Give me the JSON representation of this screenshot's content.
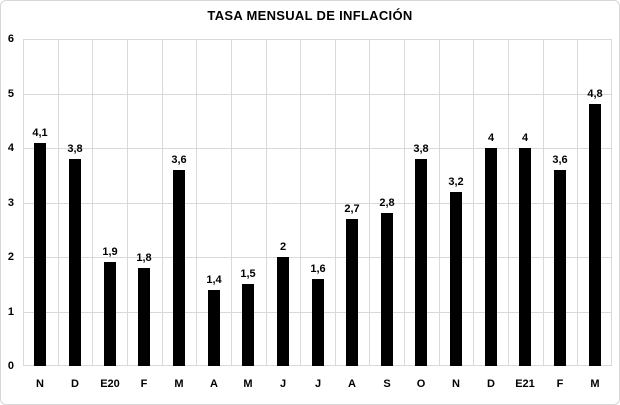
{
  "chart_data": {
    "type": "bar",
    "title": "TASA MENSUAL DE INFLACIÓN",
    "categories": [
      "N",
      "D",
      "E20",
      "F",
      "M",
      "A",
      "M",
      "J",
      "J",
      "A",
      "S",
      "O",
      "N",
      "D",
      "E21",
      "F",
      "M"
    ],
    "values": [
      4.1,
      3.8,
      1.9,
      1.8,
      3.6,
      1.4,
      1.5,
      2,
      1.6,
      2.7,
      2.8,
      3.8,
      3.2,
      4,
      4,
      3.6,
      4.8
    ],
    "value_labels": [
      "4,1",
      "3,8",
      "1,9",
      "1,8",
      "3,6",
      "1,4",
      "1,5",
      "2",
      "1,6",
      "2,7",
      "2,8",
      "3,8",
      "3,2",
      "4",
      "4",
      "3,6",
      "4,8"
    ],
    "xlabel": "",
    "ylabel": "",
    "ylim": [
      0,
      6
    ],
    "yticks": [
      0,
      1,
      2,
      3,
      4,
      5,
      6
    ],
    "grid": "horizontal-and-vertical",
    "legend_position": "none",
    "bar_color": "#000000",
    "grid_color": "#d9d9d9",
    "background_color": "#ffffff",
    "border_color": "#d7d7d7"
  }
}
